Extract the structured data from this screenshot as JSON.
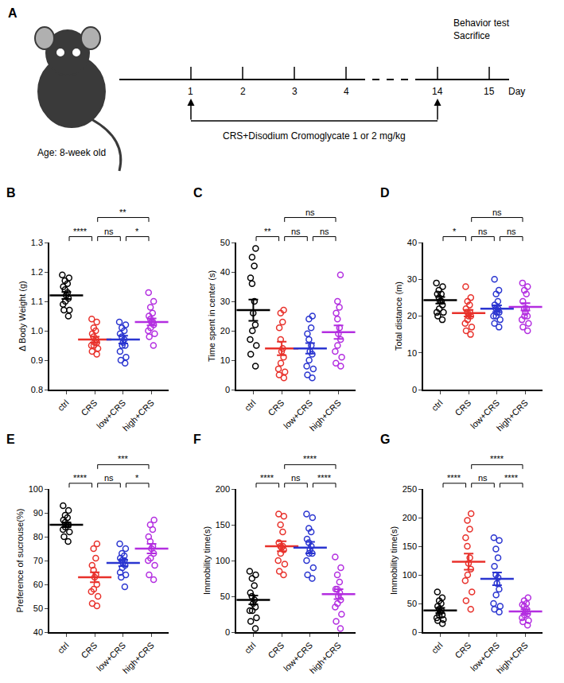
{
  "diagram": {
    "label": "A",
    "age": "Age: 8-week old",
    "end_labels": [
      "Behavior test",
      "Sacrifice"
    ],
    "days": [
      1,
      2,
      3,
      4,
      14,
      15
    ],
    "day_unit": "Day",
    "treatment": "CRS+Disodium Cromoglycate 1 or 2 mg/kg"
  },
  "chart_data": [
    {
      "type": "dot_plot",
      "label": "B",
      "ylabel": "Δ Body Weight (g)",
      "categories": [
        "ctrl",
        "CRS",
        "low+CRS",
        "high+CRS"
      ],
      "colors": [
        "#000000",
        "#e8312b",
        "#2a35d0",
        "#b32ee0"
      ],
      "points": [
        [
          1.19,
          1.18,
          1.16,
          1.17,
          1.15,
          1.14,
          1.13,
          1.12,
          1.11,
          1.1,
          1.09,
          1.07,
          1.05,
          1.07
        ],
        [
          1.04,
          1.03,
          1.01,
          1.0,
          0.99,
          0.98,
          0.97,
          0.96,
          0.96,
          0.95,
          0.94,
          0.93,
          0.92,
          0.95
        ],
        [
          1.03,
          1.02,
          1.01,
          1.0,
          0.99,
          0.98,
          0.97,
          0.96,
          0.95,
          0.93,
          0.91,
          0.9,
          0.89,
          0.95
        ],
        [
          1.13,
          1.1,
          1.08,
          1.06,
          1.05,
          1.04,
          1.03,
          1.02,
          1.01,
          1.0,
          0.99,
          0.98,
          0.95,
          1.03
        ]
      ],
      "means": [
        1.12,
        0.97,
        0.97,
        1.03
      ],
      "sem": [
        0.012,
        0.01,
        0.013,
        0.012
      ],
      "ylim": [
        0.8,
        1.3
      ],
      "yticks": [
        0.8,
        0.9,
        {
          "value": 1,
          "label": "1.0"
        },
        1.1,
        1.2,
        1.3
      ],
      "comparisons": [
        {
          "between": [
            "ctrl",
            "CRS"
          ],
          "label": "****"
        },
        {
          "between": [
            "CRS",
            "high+CRS"
          ],
          "label": "**"
        },
        {
          "between": [
            "CRS",
            "low+CRS"
          ],
          "label": "ns"
        },
        {
          "between": [
            "low+CRS",
            "high+CRS"
          ],
          "label": "*"
        }
      ]
    },
    {
      "type": "dot_plot",
      "label": "C",
      "ylabel": "Time spent in center (s)",
      "categories": [
        "ctrl",
        "CRS",
        "low+CRS",
        "high+CRS"
      ],
      "colors": [
        "#000000",
        "#e8312b",
        "#2a35d0",
        "#b32ee0"
      ],
      "points": [
        [
          48,
          45,
          42,
          38,
          36,
          30,
          26,
          22,
          20,
          17,
          15,
          12,
          8
        ],
        [
          27,
          26,
          23,
          21,
          17,
          14,
          13,
          11,
          9,
          7,
          6,
          5,
          4
        ],
        [
          25,
          24,
          21,
          19,
          17,
          15,
          13,
          12,
          10,
          8,
          7,
          5,
          4
        ],
        [
          39,
          30,
          28,
          26,
          24,
          21,
          19,
          17,
          15,
          13,
          11,
          9,
          8
        ]
      ],
      "means": [
        27,
        14,
        14,
        19.5
      ],
      "sem": [
        3.6,
        2.3,
        1.8,
        2.3
      ],
      "ylim": [
        0,
        50
      ],
      "yticks": [
        0,
        10,
        20,
        30,
        40,
        50
      ],
      "comparisons": [
        {
          "between": [
            "ctrl",
            "CRS"
          ],
          "label": "**"
        },
        {
          "between": [
            "CRS",
            "high+CRS"
          ],
          "label": "ns"
        },
        {
          "between": [
            "CRS",
            "low+CRS"
          ],
          "label": "ns"
        },
        {
          "between": [
            "low+CRS",
            "high+CRS"
          ],
          "label": "ns"
        }
      ]
    },
    {
      "type": "dot_plot",
      "label": "D",
      "ylabel": "Total distance (m)",
      "categories": [
        "ctrl",
        "CRS",
        "low+CRS",
        "high+CRS"
      ],
      "colors": [
        "#000000",
        "#e8312b",
        "#2a35d0",
        "#b32ee0"
      ],
      "points": [
        [
          29,
          28,
          27,
          26,
          26,
          25,
          24,
          24,
          23,
          22,
          21,
          20,
          19,
          21
        ],
        [
          28,
          25,
          24,
          23,
          22,
          21,
          21,
          20,
          19,
          18,
          17,
          16,
          15,
          20
        ],
        [
          30,
          27,
          26,
          24,
          23,
          22,
          22,
          21,
          21,
          20,
          19,
          18,
          17,
          20
        ],
        [
          29,
          28,
          27,
          26,
          24,
          22,
          21,
          20,
          19,
          18,
          17,
          16,
          20,
          22
        ]
      ],
      "means": [
        24.3,
        20.8,
        22,
        22.5
      ],
      "sem": [
        0.9,
        0.9,
        0.9,
        1.0
      ],
      "ylim": [
        0,
        40
      ],
      "yticks": [
        0,
        10,
        20,
        30,
        40
      ],
      "comparisons": [
        {
          "between": [
            "ctrl",
            "CRS"
          ],
          "label": "*"
        },
        {
          "between": [
            "CRS",
            "high+CRS"
          ],
          "label": "ns"
        },
        {
          "between": [
            "CRS",
            "low+CRS"
          ],
          "label": "ns"
        },
        {
          "between": [
            "low+CRS",
            "high+CRS"
          ],
          "label": "ns"
        }
      ]
    },
    {
      "type": "dot_plot",
      "label": "E",
      "ylabel": "Preference of sucrouse(%)",
      "categories": [
        "ctrl",
        "CRS",
        "low+CRS",
        "high+CRS"
      ],
      "colors": [
        "#000000",
        "#e8312b",
        "#2a35d0",
        "#b32ee0"
      ],
      "points": [
        [
          93,
          91,
          89,
          88,
          87,
          86,
          85,
          85,
          84,
          83,
          82,
          80,
          78,
          85
        ],
        [
          77,
          75,
          71,
          68,
          66,
          64,
          63,
          60,
          58,
          55,
          52,
          51,
          57
        ],
        [
          77,
          75,
          73,
          72,
          71,
          70,
          69,
          68,
          67,
          65,
          64,
          63,
          59,
          70
        ],
        [
          87,
          85,
          83,
          80,
          78,
          76,
          75,
          73,
          71,
          70,
          68,
          64,
          62
        ]
      ],
      "means": [
        85,
        63,
        69,
        75
      ],
      "sem": [
        1.0,
        2.1,
        1.3,
        2.0
      ],
      "ylim": [
        40,
        100
      ],
      "yticks": [
        40,
        50,
        60,
        70,
        80,
        90,
        100
      ],
      "comparisons": [
        {
          "between": [
            "ctrl",
            "CRS"
          ],
          "label": "****"
        },
        {
          "between": [
            "CRS",
            "high+CRS"
          ],
          "label": "***"
        },
        {
          "between": [
            "CRS",
            "low+CRS"
          ],
          "label": "ns"
        },
        {
          "between": [
            "low+CRS",
            "high+CRS"
          ],
          "label": "*"
        }
      ]
    },
    {
      "type": "dot_plot",
      "label": "F",
      "ylabel": "Immobility time(s)",
      "categories": [
        "ctrl",
        "CRS",
        "low+CRS",
        "high+CRS"
      ],
      "colors": [
        "#000000",
        "#e8312b",
        "#2a35d0",
        "#b32ee0"
      ],
      "points": [
        [
          85,
          80,
          75,
          65,
          55,
          50,
          45,
          40,
          35,
          30,
          20,
          15,
          5,
          30
        ],
        [
          165,
          162,
          150,
          140,
          125,
          120,
          118,
          115,
          110,
          100,
          95,
          85,
          80,
          120
        ],
        [
          165,
          160,
          145,
          140,
          130,
          125,
          120,
          115,
          110,
          100,
          90,
          80,
          75,
          110
        ],
        [
          105,
          90,
          80,
          70,
          60,
          55,
          50,
          45,
          40,
          35,
          25,
          15,
          5,
          60
        ]
      ],
      "means": [
        45,
        120,
        118,
        53
      ],
      "sem": [
        6,
        7,
        8,
        7
      ],
      "ylim": [
        0,
        200
      ],
      "yticks": [
        0,
        50,
        100,
        150,
        200
      ],
      "comparisons": [
        {
          "between": [
            "ctrl",
            "CRS"
          ],
          "label": "****"
        },
        {
          "between": [
            "CRS",
            "high+CRS"
          ],
          "label": "****"
        },
        {
          "between": [
            "CRS",
            "low+CRS"
          ],
          "label": "ns"
        },
        {
          "between": [
            "low+CRS",
            "high+CRS"
          ],
          "label": "****"
        }
      ]
    },
    {
      "type": "dot_plot",
      "label": "G",
      "ylabel": "Immobility time(s)",
      "categories": [
        "ctrl",
        "CRS",
        "low+CRS",
        "high+CRS"
      ],
      "colors": [
        "#000000",
        "#e8312b",
        "#2a35d0",
        "#b32ee0"
      ],
      "points": [
        [
          70,
          60,
          55,
          50,
          45,
          40,
          38,
          35,
          30,
          25,
          22,
          20,
          15,
          30
        ],
        [
          207,
          195,
          180,
          165,
          150,
          130,
          120,
          110,
          100,
          90,
          70,
          55,
          40
        ],
        [
          165,
          160,
          145,
          130,
          115,
          100,
          95,
          85,
          75,
          65,
          50,
          45,
          35,
          40
        ],
        [
          60,
          55,
          50,
          48,
          45,
          40,
          35,
          32,
          30,
          25,
          20,
          18,
          12
        ]
      ],
      "means": [
        38,
        123,
        93,
        36
      ],
      "sem": [
        4.5,
        14,
        11,
        4
      ],
      "ylim": [
        0,
        250
      ],
      "yticks": [
        0,
        50,
        100,
        150,
        200,
        250
      ],
      "comparisons": [
        {
          "between": [
            "ctrl",
            "CRS"
          ],
          "label": "****"
        },
        {
          "between": [
            "CRS",
            "high+CRS"
          ],
          "label": "****"
        },
        {
          "between": [
            "CRS",
            "low+CRS"
          ],
          "label": "ns"
        },
        {
          "between": [
            "low+CRS",
            "high+CRS"
          ],
          "label": "****"
        }
      ]
    }
  ]
}
